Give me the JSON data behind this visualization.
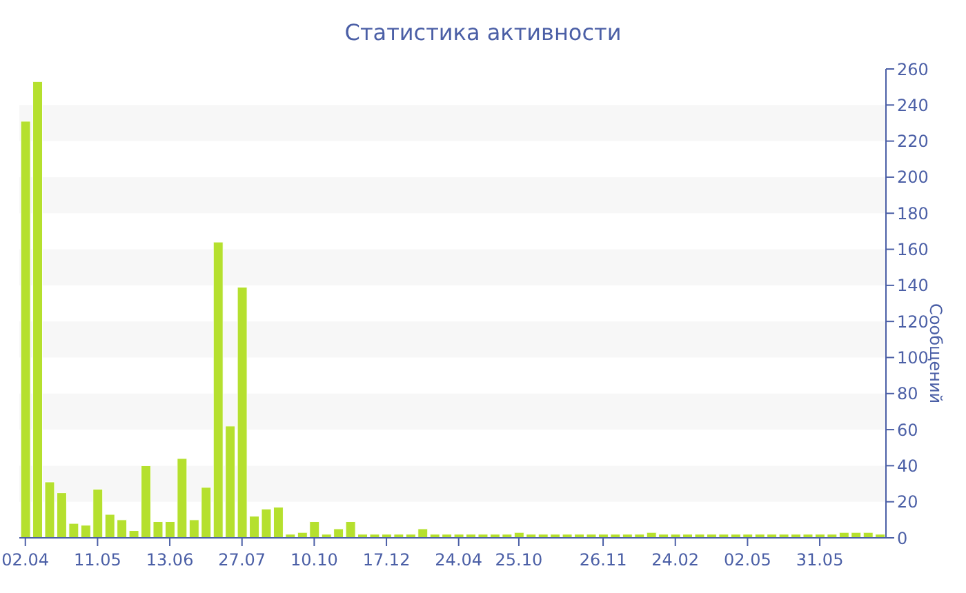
{
  "chart_data": {
    "type": "bar",
    "title": "Статистика активности",
    "ylabel": "Сообщений",
    "color": "#b5e02e",
    "categories": [
      "02.04",
      null,
      null,
      null,
      null,
      null,
      "11.05",
      null,
      null,
      null,
      null,
      null,
      "13.06",
      null,
      null,
      null,
      null,
      null,
      "27.07",
      null,
      null,
      null,
      null,
      null,
      "10.10",
      null,
      null,
      null,
      null,
      null,
      "17.12",
      null,
      null,
      null,
      null,
      null,
      "24.04",
      null,
      null,
      null,
      null,
      "25.10",
      null,
      null,
      null,
      null,
      null,
      null,
      "26.11",
      null,
      null,
      null,
      null,
      null,
      "24.02",
      null,
      null,
      null,
      null,
      null,
      "02.05",
      null,
      null,
      null,
      null,
      null,
      "31.05",
      null,
      null,
      null,
      null,
      null
    ],
    "values": [
      231,
      253,
      31,
      25,
      8,
      7,
      27,
      13,
      10,
      4,
      40,
      9,
      9,
      44,
      10,
      28,
      164,
      62,
      139,
      12,
      16,
      17,
      2,
      3,
      9,
      2,
      5,
      9,
      2,
      2,
      2,
      2,
      2,
      5,
      2,
      2,
      2,
      2,
      2,
      2,
      2,
      3,
      2,
      2,
      2,
      2,
      2,
      2,
      2,
      2,
      2,
      2,
      3,
      2,
      2,
      2,
      2,
      2,
      2,
      2,
      2,
      2,
      2,
      2,
      2,
      2,
      2,
      2,
      3,
      3,
      3,
      2
    ],
    "ylim": [
      0,
      260
    ],
    "yticks": [
      0,
      20,
      40,
      60,
      80,
      100,
      120,
      140,
      160,
      180,
      200,
      220,
      240,
      260
    ],
    "bands": [
      {
        "axis": "y",
        "from": 20,
        "to": 40,
        "color": "#f7f7f7"
      },
      {
        "axis": "y",
        "from": 60,
        "to": 80,
        "color": "#f7f7f7"
      },
      {
        "axis": "y",
        "from": 100,
        "to": 120,
        "color": "#f7f7f7"
      },
      {
        "axis": "y",
        "from": 140,
        "to": 160,
        "color": "#f7f7f7"
      },
      {
        "axis": "y",
        "from": 180,
        "to": 200,
        "color": "#f7f7f7"
      },
      {
        "axis": "y",
        "from": 220,
        "to": 240,
        "color": "#f7f7f7"
      }
    ]
  }
}
